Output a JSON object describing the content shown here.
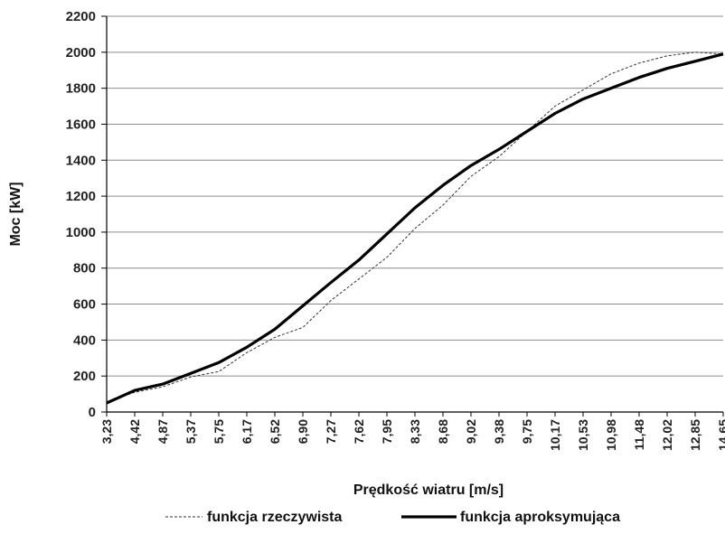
{
  "chart_data": {
    "type": "line",
    "xlabel": "Prędkość wiatru [m/s]",
    "ylabel": "Moc [kW]",
    "ylim": [
      0,
      2200
    ],
    "y_ticks": [
      0,
      200,
      400,
      600,
      800,
      1000,
      1200,
      1400,
      1600,
      1800,
      2000,
      2200
    ],
    "x_tick_labels": [
      "3,23",
      "4,42",
      "4,87",
      "5,37",
      "5,75",
      "6,17",
      "6,52",
      "6,90",
      "7,27",
      "7,62",
      "7,95",
      "8,33",
      "8,68",
      "9,02",
      "9,38",
      "9,75",
      "10,17",
      "10,53",
      "10,98",
      "11,48",
      "12,02",
      "12,85",
      "14,65"
    ],
    "grid": "horizontal",
    "legend_position": "bottom",
    "series": [
      {
        "name": "funkcja rzeczywista",
        "style": "dashed",
        "color": "#333333",
        "values": [
          55,
          110,
          140,
          195,
          225,
          330,
          415,
          470,
          620,
          740,
          860,
          1020,
          1150,
          1310,
          1420,
          1560,
          1700,
          1790,
          1880,
          1940,
          1980,
          2000,
          1990
        ]
      },
      {
        "name": "funkcja aproksymująca",
        "style": "solid",
        "color": "#000000",
        "values": [
          50,
          120,
          155,
          215,
          275,
          360,
          460,
          590,
          720,
          845,
          990,
          1135,
          1260,
          1370,
          1460,
          1560,
          1660,
          1740,
          1800,
          1860,
          1910,
          1950,
          1990
        ]
      }
    ]
  }
}
